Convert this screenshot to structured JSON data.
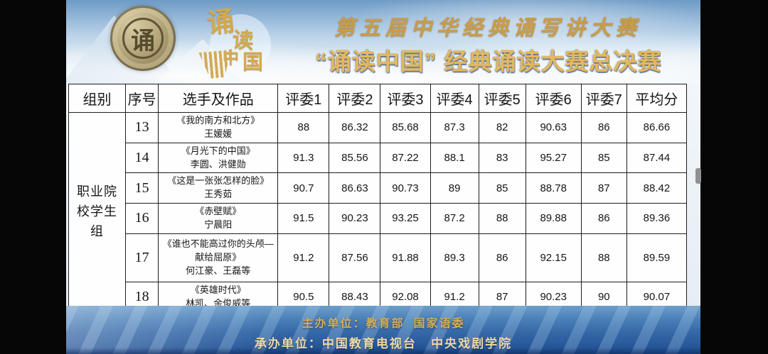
{
  "banner": {
    "seal_char": "诵",
    "logo_chars": [
      "诵",
      "读",
      "中",
      "国"
    ],
    "title_line1": "第五届中华经典诵写讲大赛",
    "title_line2": "“诵读中国” 经典诵读大赛总决赛",
    "gold_color": "#d3a94f",
    "sky_color": "#a9c6e2"
  },
  "table": {
    "headers": [
      "组别",
      "序号",
      "选手及作品",
      "评委1",
      "评委2",
      "评委3",
      "评委4",
      "评委5",
      "评委6",
      "评委7",
      "平均分"
    ],
    "group_label": "职业院校学生组",
    "rows": [
      {
        "no": "13",
        "work": "《我的南方和北方》",
        "performer": "王媛媛",
        "scores": [
          "88",
          "86.32",
          "85.68",
          "87.3",
          "82",
          "90.63",
          "86"
        ],
        "avg": "86.66"
      },
      {
        "no": "14",
        "work": "《月光下的中国》",
        "performer": "李圆、洪健勋",
        "scores": [
          "91.3",
          "85.56",
          "87.22",
          "88.1",
          "83",
          "95.27",
          "85"
        ],
        "avg": "87.44"
      },
      {
        "no": "15",
        "work": "《这是一张张怎样的脸》",
        "performer": "王秀茹",
        "scores": [
          "90.7",
          "86.63",
          "90.73",
          "89",
          "85",
          "88.78",
          "87"
        ],
        "avg": "88.42"
      },
      {
        "no": "16",
        "work": "《赤壁赋》",
        "performer": "宁晨阳",
        "scores": [
          "91.5",
          "90.23",
          "93.25",
          "87.2",
          "88",
          "89.88",
          "86"
        ],
        "avg": "89.36"
      },
      {
        "no": "17",
        "work": "《谁也不能高过你的头颅—献给屈原》",
        "performer": "何江豪、王磊等",
        "scores": [
          "91.2",
          "87.56",
          "91.88",
          "89.3",
          "86",
          "92.15",
          "88"
        ],
        "avg": "89.59",
        "tall": true
      },
      {
        "no": "18",
        "work": "《英雄时代》",
        "performer": "林凯、余俊威等",
        "scores": [
          "90.5",
          "88.43",
          "92.08",
          "91.2",
          "87",
          "90.23",
          "90"
        ],
        "avg": "90.07"
      }
    ]
  },
  "footer": {
    "line1": "主办单位：教育部  国家语委",
    "line2": "承办单位：中国教育电视台   中央戏剧学院"
  }
}
